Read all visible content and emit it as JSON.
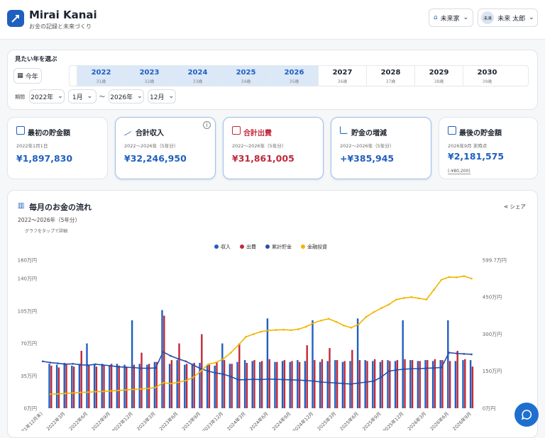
{
  "header": {
    "title": "Mirai Kanai",
    "subtitle": "お金の記録と未来づくり",
    "home": "未来家",
    "avatar": "未来",
    "user": "未来 太郎"
  },
  "year_selector": {
    "title": "見たい年を選ぶ",
    "this_year": "今年",
    "years": [
      {
        "year": "2022",
        "age": "31歳",
        "selected": true
      },
      {
        "year": "2023",
        "age": "32歳",
        "selected": true
      },
      {
        "year": "2024",
        "age": "33歳",
        "selected": true
      },
      {
        "year": "2025",
        "age": "34歳",
        "selected": true
      },
      {
        "year": "2026",
        "age": "35歳",
        "selected": true
      },
      {
        "year": "2027",
        "age": "36歳",
        "selected": false
      },
      {
        "year": "2028",
        "age": "37歳",
        "selected": false
      },
      {
        "year": "2029",
        "age": "38歳",
        "selected": false
      },
      {
        "year": "2030",
        "age": "39歳",
        "selected": false
      }
    ]
  },
  "period": {
    "label": "期間",
    "start_year": "2022年",
    "start_month": "1月",
    "separator": "〜",
    "end_year": "2026年",
    "end_month": "12月"
  },
  "cards": [
    {
      "title": "最初の貯金額",
      "sub": "2022年1月1日",
      "value": "¥1,897,830"
    },
    {
      "title": "合計収入",
      "sub": "2022〜2026年（5年分）",
      "value": "¥32,246,950"
    },
    {
      "title": "合計出費",
      "sub": "2022〜2026年（5年分）",
      "value": "¥31,861,005"
    },
    {
      "title": "貯金の増減",
      "sub": "2022〜2026年（5年分）",
      "value": "+¥385,945"
    },
    {
      "title": "最後の貯金額",
      "sub": "2026年9月 末時点",
      "value": "¥2,181,575",
      "note": "(-¥80,200)"
    }
  ],
  "chart_section": {
    "share": "シェア",
    "hint": "グラフをタップで詳細"
  },
  "chart_data": {
    "type": "bar_line",
    "title": "毎月のお金の流れ",
    "subtitle": "2022〜2026年（5年分）",
    "categories": [
      "(2021年12月末)",
      null,
      null,
      "2022年3月",
      null,
      null,
      "2022年6月",
      null,
      null,
      "2022年9月",
      null,
      null,
      "2022年12月",
      null,
      null,
      "2023年3月",
      null,
      null,
      "2023年6月",
      null,
      null,
      "2023年9月",
      null,
      null,
      "2023年12月",
      null,
      null,
      "2024年3月",
      null,
      null,
      "2024年6月",
      null,
      null,
      "2024年9月",
      null,
      null,
      "2024年12月",
      null,
      null,
      "2025年3月",
      null,
      null,
      "2025年6月",
      null,
      null,
      "2025年9月",
      null,
      null,
      "2025年12月",
      null,
      null,
      "2026年3月",
      null,
      null,
      "2026年6月",
      null,
      null,
      "2026年9月"
    ],
    "series": [
      {
        "name": "収入",
        "color": "#1f5fbf",
        "kind": "bar",
        "values": [
          null,
          48,
          47,
          49,
          46,
          48,
          70,
          47,
          48,
          46,
          48,
          47,
          95,
          48,
          47,
          50,
          106,
          48,
          52,
          47,
          48,
          49,
          47,
          46,
          70,
          48,
          50,
          52,
          51,
          50,
          97,
          50,
          51,
          50,
          52,
          51,
          95,
          50,
          51,
          52,
          50,
          51,
          97,
          52,
          51,
          50,
          52,
          51,
          95,
          52,
          51,
          52,
          51,
          52,
          95,
          51,
          52,
          52
        ]
      },
      {
        "name": "出費",
        "color": "#c0283a",
        "kind": "bar",
        "values": [
          null,
          46,
          44,
          47,
          45,
          62,
          47,
          45,
          46,
          48,
          46,
          45,
          47,
          60,
          48,
          50,
          100,
          52,
          70,
          48,
          49,
          80,
          47,
          50,
          52,
          48,
          70,
          49,
          52,
          51,
          53,
          50,
          52,
          51,
          50,
          68,
          52,
          53,
          65,
          52,
          51,
          63,
          52,
          51,
          53,
          52,
          51,
          52,
          53,
          52,
          51,
          52,
          53,
          52,
          51,
          62,
          53,
          45
        ]
      },
      {
        "name": "累計貯金",
        "color": "#2a4fa8",
        "kind": "line",
        "axis": "y2",
        "values": [
          189.8,
          185,
          182,
          178,
          180,
          176,
          174,
          178,
          175,
          172,
          168,
          166,
          165,
          162,
          162,
          163,
          228,
          212,
          200,
          190,
          175,
          160,
          150,
          143,
          138,
          128,
          115,
          116,
          117,
          116,
          118,
          117,
          116,
          115,
          114,
          112,
          110,
          106,
          104,
          102,
          100,
          98,
          102,
          106,
          110,
          126,
          150,
          155,
          158,
          160,
          160,
          162,
          163,
          165,
          225,
          222,
          220,
          218.2
        ]
      },
      {
        "name": "金融投資",
        "color": "#f0b400",
        "kind": "line",
        "axis": "y2",
        "values": [
          null,
          57,
          58,
          60,
          62,
          64,
          65,
          67,
          68,
          70,
          72,
          74,
          76,
          78,
          80,
          84,
          103,
          100,
          105,
          112,
          125,
          150,
          178,
          185,
          200,
          225,
          255,
          289,
          300,
          310,
          315,
          317,
          318,
          316,
          320,
          330,
          345,
          355,
          362,
          350,
          335,
          326,
          340,
          370,
          389,
          405,
          420,
          440,
          446,
          450,
          445,
          440,
          480,
          520,
          531,
          530,
          535,
          525
        ]
      }
    ],
    "ylim": [
      0,
      160
    ],
    "yticks": [
      {
        "value": 0,
        "label": "0万円"
      },
      {
        "value": 35,
        "label": "35万円"
      },
      {
        "value": 70,
        "label": "70万円"
      },
      {
        "value": 105,
        "label": "105万円"
      },
      {
        "value": 140,
        "label": "140万円"
      },
      {
        "value": 160,
        "label": "160万円"
      }
    ],
    "y2lim": [
      0,
      599.7
    ],
    "y2ticks": [
      {
        "value": 0,
        "label": "0万円"
      },
      {
        "value": 150,
        "label": "150万円"
      },
      {
        "value": 300,
        "label": "300万円"
      },
      {
        "value": 450,
        "label": "450万円"
      },
      {
        "value": 599.7,
        "label": "599.7万円"
      }
    ],
    "grid": false
  }
}
